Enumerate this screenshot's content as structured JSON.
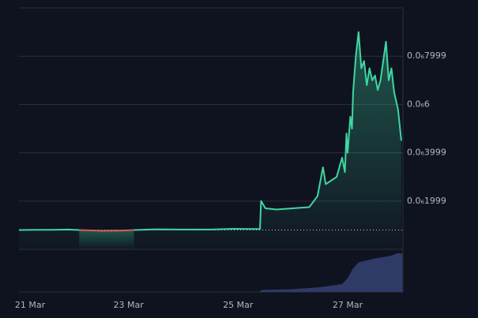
{
  "chart_data": {
    "type": "line",
    "x": [
      21.0,
      21.3,
      21.6,
      21.9,
      22.1,
      22.5,
      22.9,
      23.1,
      23.5,
      24.0,
      24.5,
      24.9,
      25.3,
      25.4,
      25.42,
      25.5,
      25.7,
      26.0,
      26.3,
      26.45,
      26.55,
      26.6,
      26.8,
      26.9,
      26.95,
      26.98,
      27.0,
      27.05,
      27.08,
      27.1,
      27.15,
      27.2,
      27.25,
      27.3,
      27.35,
      27.4,
      27.45,
      27.5,
      27.55,
      27.6,
      27.7,
      27.75,
      27.8,
      27.85,
      27.92,
      27.98
    ],
    "series": [
      {
        "color": "#3fd6a0",
        "values": [
          8e-08,
          8.1e-08,
          8.1e-08,
          8.2e-08,
          8e-08,
          null,
          null,
          8e-08,
          8.3e-08,
          8.2e-08,
          8.2e-08,
          8.5e-08,
          8.4e-08,
          8.4e-08,
          2e-07,
          1.7e-07,
          1.65e-07,
          1.7e-07,
          1.75e-07,
          2.2e-07,
          3.4e-07,
          2.7e-07,
          3e-07,
          3.8e-07,
          3.2e-07,
          4.8e-07,
          4e-07,
          5.5e-07,
          5e-07,
          6.5e-07,
          8e-07,
          9e-07,
          7.5e-07,
          7.8e-07,
          6.8e-07,
          7.5e-07,
          7e-07,
          7.2e-07,
          6.6e-07,
          7e-07,
          8.6e-07,
          7e-07,
          7.5e-07,
          6.5e-07,
          5.8e-07,
          4.5e-07
        ]
      },
      {
        "color": "#e05a5a",
        "values": [
          null,
          null,
          null,
          null,
          8e-08,
          7.7e-08,
          7.8e-08,
          8e-08,
          null,
          null,
          null,
          null,
          null,
          null,
          null,
          null,
          null,
          null,
          null,
          null,
          null,
          null,
          null,
          null,
          null,
          null,
          null,
          null,
          null,
          null,
          null,
          null,
          null,
          null,
          null,
          null,
          null,
          null,
          null,
          null,
          null,
          null,
          null,
          null,
          null,
          null
        ]
      }
    ],
    "price_line": 8e-08,
    "xlim": [
      21,
      28.01
    ],
    "xticks": [
      {
        "value": 21,
        "label": "21 Mar"
      },
      {
        "value": 23,
        "label": "23 Mar"
      },
      {
        "value": 25,
        "label": "25 Mar"
      },
      {
        "value": 27,
        "label": "27 Mar"
      }
    ],
    "ylim": [
      0,
      1e-06
    ],
    "yticks": [
      {
        "value": 7.999e-07,
        "label": "0.0₆7999"
      },
      {
        "value": 6e-07,
        "label": "0.0₆6"
      },
      {
        "value": 3.999e-07,
        "label": "0.0₆3999"
      },
      {
        "value": 1.999e-07,
        "label": "0.0₆1999"
      }
    ],
    "grid": true,
    "volume": {
      "color": "#2f3a66",
      "ylim": [
        0,
        1
      ],
      "x": [
        25.4,
        25.42,
        26.0,
        26.5,
        26.9,
        27.0,
        27.1,
        27.2,
        27.5,
        27.8,
        27.9,
        28.0
      ],
      "values": [
        0,
        0.05,
        0.07,
        0.12,
        0.2,
        0.35,
        0.6,
        0.75,
        0.85,
        0.92,
        0.98,
        0.98
      ]
    }
  }
}
